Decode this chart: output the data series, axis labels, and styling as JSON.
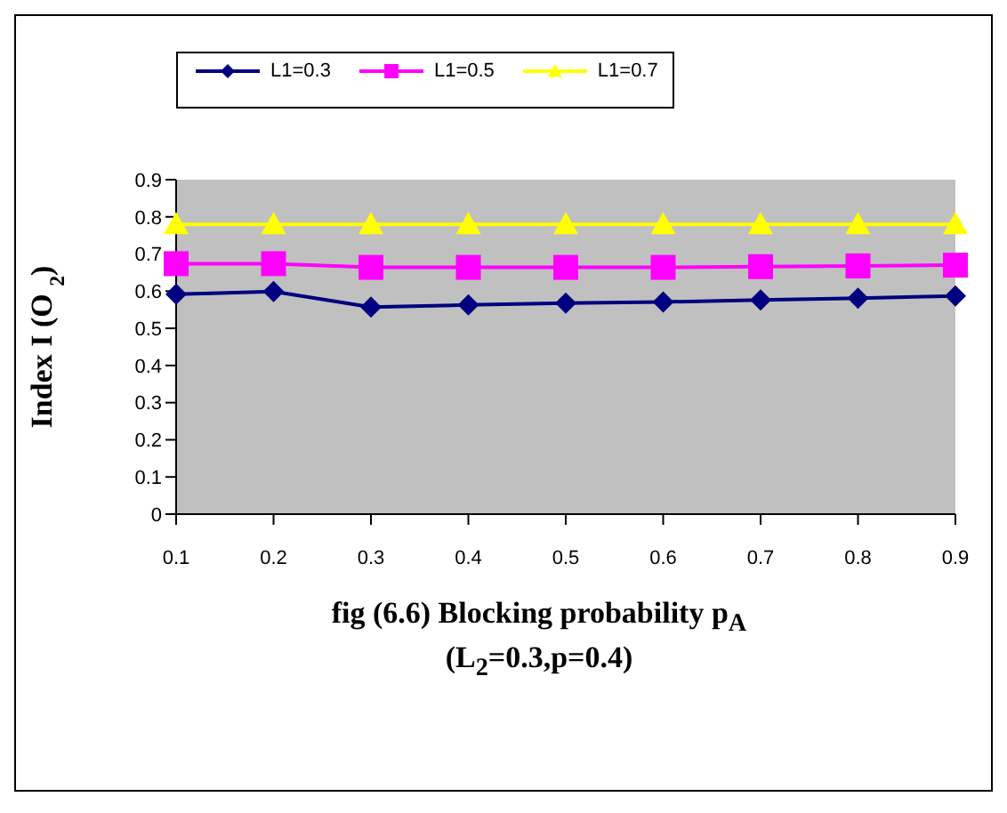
{
  "chart_data": {
    "type": "line",
    "title": "fig (6.6) Blocking probability p$_{A}$",
    "subtitle": "(L$_{2}$=0.3,p=0.4)",
    "ylabel": "Index I (O $_{2}$)",
    "categories": [
      "0.1",
      "0.2",
      "0.3",
      "0.4",
      "0.5",
      "0.6",
      "0.7",
      "0.8",
      "0.9"
    ],
    "series": [
      {
        "name": "L1=0.3",
        "color": "#000080",
        "marker": "diamond",
        "values": [
          0.592,
          0.599,
          0.557,
          0.563,
          0.568,
          0.571,
          0.576,
          0.581,
          0.587
        ]
      },
      {
        "name": "L1=0.5",
        "color": "#ff00ff",
        "marker": "square",
        "values": [
          0.674,
          0.674,
          0.664,
          0.664,
          0.664,
          0.664,
          0.666,
          0.668,
          0.67
        ]
      },
      {
        "name": "L1=0.7",
        "color": "#ffff00",
        "marker": "triangle",
        "values": [
          0.78,
          0.78,
          0.78,
          0.78,
          0.78,
          0.78,
          0.78,
          0.78,
          0.78
        ]
      }
    ],
    "ylim": [
      0,
      0.9
    ],
    "yticks": [
      0,
      0.1,
      0.2,
      0.3,
      0.4,
      0.5,
      0.6,
      0.7,
      0.8,
      0.9
    ],
    "grid": false,
    "legend": "top"
  }
}
